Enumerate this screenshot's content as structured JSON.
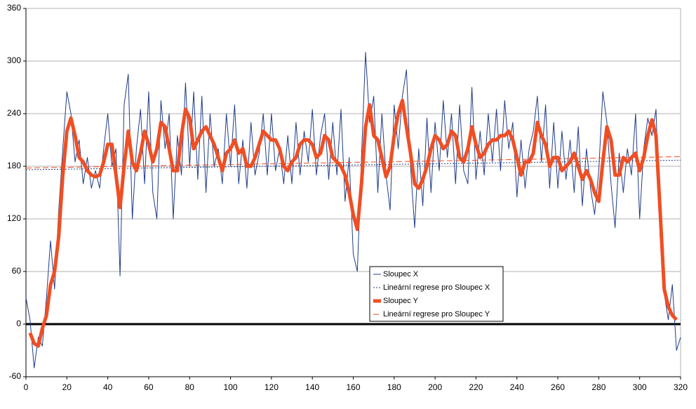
{
  "chart_data": {
    "type": "line",
    "x": [
      0,
      2,
      4,
      6,
      8,
      10,
      12,
      14,
      16,
      18,
      20,
      22,
      24,
      26,
      28,
      30,
      32,
      34,
      36,
      38,
      40,
      42,
      44,
      46,
      48,
      50,
      52,
      54,
      56,
      58,
      60,
      62,
      64,
      66,
      68,
      70,
      72,
      74,
      76,
      78,
      80,
      82,
      84,
      86,
      88,
      90,
      92,
      94,
      96,
      98,
      100,
      102,
      104,
      106,
      108,
      110,
      112,
      114,
      116,
      118,
      120,
      122,
      124,
      126,
      128,
      130,
      132,
      134,
      136,
      138,
      140,
      142,
      144,
      146,
      148,
      150,
      152,
      154,
      156,
      158,
      160,
      162,
      164,
      166,
      168,
      170,
      172,
      174,
      176,
      178,
      180,
      182,
      184,
      186,
      188,
      190,
      192,
      194,
      196,
      198,
      200,
      202,
      204,
      206,
      208,
      210,
      212,
      214,
      216,
      218,
      220,
      222,
      224,
      226,
      228,
      230,
      232,
      234,
      236,
      238,
      240,
      242,
      244,
      246,
      248,
      250,
      252,
      254,
      256,
      258,
      260,
      262,
      264,
      266,
      268,
      270,
      272,
      274,
      276,
      278,
      280,
      282,
      284,
      286,
      288,
      290,
      292,
      294,
      296,
      298,
      300,
      302,
      304,
      306,
      308,
      310,
      312,
      314,
      316,
      318,
      320
    ],
    "series": [
      {
        "name": "Sloupec X",
        "color": "#1f3c88",
        "width": 1,
        "style": "solid",
        "values": [
          30,
          5,
          -50,
          -15,
          -25,
          30,
          95,
          40,
          130,
          200,
          265,
          240,
          185,
          210,
          160,
          190,
          155,
          175,
          155,
          200,
          240,
          180,
          200,
          55,
          250,
          285,
          120,
          200,
          245,
          160,
          265,
          150,
          120,
          255,
          200,
          240,
          120,
          215,
          170,
          275,
          180,
          265,
          165,
          260,
          150,
          240,
          180,
          200,
          160,
          240,
          180,
          250,
          160,
          210,
          155,
          230,
          170,
          195,
          240,
          170,
          240,
          175,
          200,
          160,
          215,
          160,
          230,
          170,
          220,
          185,
          245,
          170,
          215,
          240,
          165,
          230,
          170,
          245,
          140,
          190,
          80,
          60,
          190,
          310,
          230,
          260,
          150,
          240,
          170,
          130,
          250,
          200,
          260,
          290,
          180,
          110,
          200,
          135,
          235,
          150,
          230,
          175,
          255,
          190,
          240,
          160,
          250,
          175,
          160,
          270,
          165,
          220,
          170,
          240,
          185,
          245,
          175,
          255,
          200,
          230,
          145,
          210,
          155,
          200,
          220,
          260,
          185,
          250,
          155,
          230,
          155,
          220,
          165,
          210,
          150,
          225,
          135,
          200,
          155,
          125,
          175,
          265,
          230,
          160,
          110,
          195,
          150,
          200,
          170,
          240,
          120,
          200,
          235,
          215,
          245,
          100,
          35,
          5,
          45,
          -30,
          -15
        ]
      },
      {
        "name": "Lineární regrese pro Sloupec X",
        "color": "#1f3c88",
        "width": 1,
        "style": "dotted",
        "x": [
          0,
          320
        ],
        "values": [
          176,
          187
        ]
      },
      {
        "name": "Sloupec Y",
        "color": "#f04e23",
        "width": 5,
        "style": "solid",
        "values": [
          null,
          -10,
          -22,
          -25,
          -5,
          10,
          45,
          60,
          100,
          170,
          220,
          235,
          215,
          190,
          185,
          175,
          170,
          168,
          170,
          185,
          205,
          205,
          170,
          133,
          180,
          220,
          185,
          175,
          195,
          220,
          205,
          185,
          200,
          230,
          225,
          200,
          175,
          175,
          215,
          245,
          235,
          200,
          210,
          220,
          225,
          215,
          205,
          190,
          175,
          195,
          200,
          210,
          195,
          200,
          180,
          180,
          190,
          205,
          220,
          215,
          210,
          210,
          200,
          180,
          175,
          185,
          190,
          205,
          210,
          210,
          205,
          190,
          195,
          215,
          210,
          190,
          185,
          180,
          170,
          150,
          125,
          108,
          160,
          225,
          250,
          215,
          210,
          190,
          168,
          180,
          215,
          240,
          255,
          225,
          195,
          160,
          155,
          165,
          180,
          200,
          215,
          210,
          200,
          205,
          220,
          215,
          190,
          185,
          200,
          225,
          205,
          190,
          195,
          205,
          210,
          210,
          215,
          215,
          220,
          210,
          190,
          170,
          185,
          185,
          195,
          230,
          215,
          205,
          180,
          190,
          190,
          175,
          180,
          185,
          195,
          180,
          165,
          175,
          165,
          150,
          140,
          185,
          225,
          210,
          170,
          170,
          190,
          185,
          190,
          195,
          175,
          190,
          215,
          233,
          215,
          130,
          40,
          20,
          10,
          5,
          null
        ]
      },
      {
        "name": "Lineární regrese pro Sloupec Y",
        "color": "#f04e23",
        "width": 1,
        "style": "dashed",
        "x": [
          0,
          320
        ],
        "values": [
          178,
          191
        ]
      }
    ],
    "xlim": [
      0,
      320
    ],
    "xticks": [
      0,
      20,
      40,
      60,
      80,
      100,
      120,
      140,
      160,
      180,
      200,
      220,
      240,
      260,
      280,
      300,
      320
    ],
    "ylim": [
      -60,
      360
    ],
    "yticks": [
      -60,
      0,
      60,
      120,
      180,
      240,
      300,
      360
    ],
    "grid": true
  }
}
